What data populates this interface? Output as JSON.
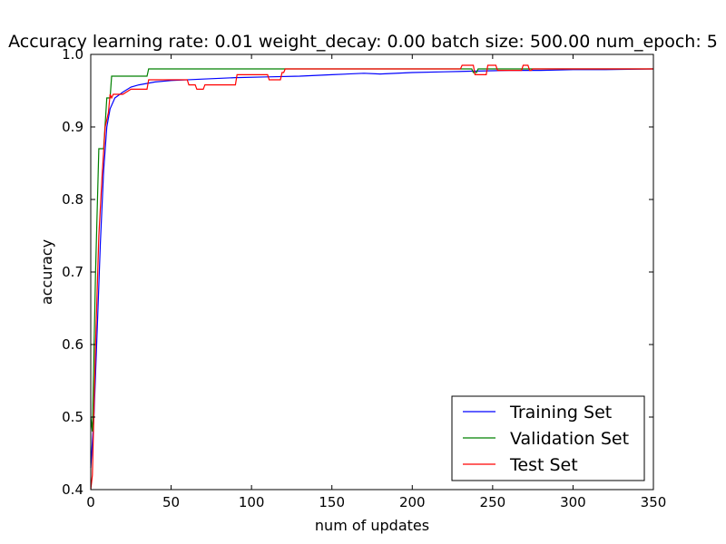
{
  "chart_data": {
    "type": "line",
    "title": "Accuracy learning rate: 0.01 weight_decay: 0.00 batch size: 500.00 num_epoch: 5",
    "xlabel": "num of updates",
    "ylabel": "accuracy",
    "xlim": [
      0,
      350
    ],
    "ylim": [
      0.4,
      1.0
    ],
    "xticks": [
      "0",
      "50",
      "100",
      "150",
      "200",
      "250",
      "300",
      "350"
    ],
    "yticks": [
      "0.4",
      "0.5",
      "0.6",
      "0.7",
      "0.8",
      "0.9",
      "1.0"
    ],
    "grid": false,
    "legend_position": "bottom-right",
    "series": [
      {
        "name": "Training Set",
        "color": "#0000ff",
        "x": [
          0,
          2,
          4,
          6,
          8,
          10,
          12,
          15,
          20,
          25,
          30,
          40,
          50,
          70,
          90,
          110,
          130,
          150,
          170,
          180,
          200,
          220,
          240,
          260,
          280,
          300,
          320,
          350
        ],
        "y": [
          0.43,
          0.5,
          0.62,
          0.74,
          0.84,
          0.9,
          0.925,
          0.94,
          0.948,
          0.955,
          0.958,
          0.962,
          0.964,
          0.966,
          0.968,
          0.969,
          0.97,
          0.972,
          0.974,
          0.973,
          0.975,
          0.976,
          0.977,
          0.978,
          0.978,
          0.979,
          0.979,
          0.98
        ]
      },
      {
        "name": "Validation Set",
        "color": "#008000",
        "x": [
          0,
          1,
          3,
          5,
          7,
          8,
          10,
          11,
          12,
          13,
          14,
          35,
          36,
          237,
          238,
          240,
          241,
          350
        ],
        "y": [
          0.5,
          0.48,
          0.7,
          0.87,
          0.87,
          0.87,
          0.94,
          0.94,
          0.94,
          0.97,
          0.97,
          0.97,
          0.98,
          0.98,
          0.975,
          0.975,
          0.98,
          0.98
        ]
      },
      {
        "name": "Test Set",
        "color": "#ff0000",
        "x": [
          0,
          1,
          3,
          5,
          7,
          9,
          11,
          12,
          13,
          14,
          15,
          20,
          25,
          35,
          36,
          60,
          61,
          65,
          66,
          70,
          71,
          90,
          91,
          110,
          111,
          118,
          119,
          120,
          121,
          230,
          231,
          238,
          239,
          246,
          247,
          252,
          253,
          268,
          269,
          272,
          273,
          274,
          275,
          350
        ],
        "y": [
          0.4,
          0.42,
          0.6,
          0.75,
          0.83,
          0.9,
          0.92,
          0.945,
          0.94,
          0.945,
          0.945,
          0.945,
          0.952,
          0.952,
          0.965,
          0.965,
          0.958,
          0.958,
          0.952,
          0.952,
          0.958,
          0.958,
          0.972,
          0.972,
          0.965,
          0.965,
          0.975,
          0.975,
          0.98,
          0.98,
          0.985,
          0.985,
          0.972,
          0.972,
          0.985,
          0.985,
          0.978,
          0.978,
          0.985,
          0.985,
          0.978,
          0.978,
          0.98,
          0.98
        ]
      }
    ]
  }
}
